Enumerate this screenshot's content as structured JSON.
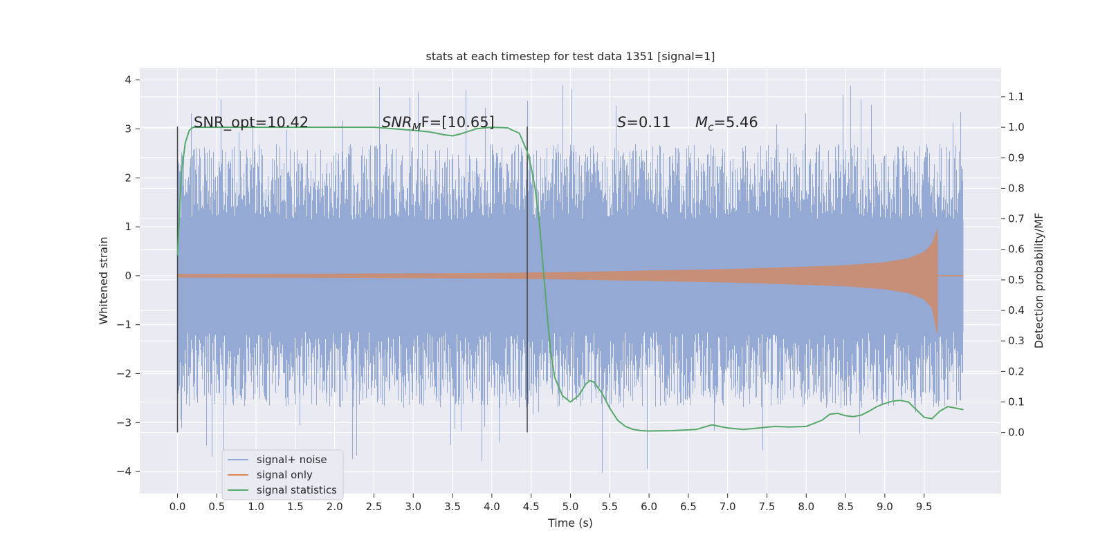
{
  "chart_data": {
    "type": "line",
    "title": "stats at each timestep for test data 1351 [signal=1]",
    "xlabel": "Time (s)",
    "ylabel": "Whitened strain",
    "y2label": "Detection probability/MF",
    "xlim": [
      -0.48,
      10.48
    ],
    "ylim": [
      -4.45,
      4.25
    ],
    "y2lim": [
      -0.2,
      1.195
    ],
    "xticks": [
      "0.0",
      "0.5",
      "1.0",
      "1.5",
      "2.0",
      "2.5",
      "3.0",
      "3.5",
      "4.0",
      "4.5",
      "5.0",
      "5.5",
      "6.0",
      "6.5",
      "7.0",
      "7.5",
      "8.0",
      "8.5",
      "9.0",
      "9.5"
    ],
    "yticks": [
      "−4",
      "−3",
      "−2",
      "−1",
      "0",
      "1",
      "2",
      "3",
      "4"
    ],
    "y2ticks": [
      "0.0",
      "0.1",
      "0.2",
      "0.3",
      "0.4",
      "0.5",
      "0.6",
      "0.7",
      "0.8",
      "0.9",
      "1.0",
      "1.1"
    ],
    "grid": true,
    "legend_position": "lower-left",
    "colors": {
      "background": "#eaeaf2",
      "grid": "#ffffff",
      "noise": "#94a9d3",
      "signal": "#dd8452",
      "stat": "#55a868",
      "vline": "#444444"
    },
    "annotations": {
      "snr_opt": "SNR_opt=10.42",
      "snr_mf_head": "SNR",
      "snr_mf_sub": "M",
      "snr_mf_tail": "F=[10.65]",
      "s_head": "S",
      "s_tail": "=0.11",
      "mc_head": "M",
      "mc_sub": "c",
      "mc_tail": "=5.46"
    },
    "vertical_lines_x": [
      0.0,
      4.45
    ],
    "series": [
      {
        "name": "signal+ noise",
        "kind": "noise",
        "x_range": [
          0.0,
          10.0
        ],
        "envelope": {
          "core": 1.15,
          "typical_peak": 2.7,
          "max_peak": 3.9,
          "min_peak": -4.05
        }
      },
      {
        "name": "signal only",
        "kind": "chirp",
        "x_range": [
          0.0,
          9.67
        ],
        "amplitude": {
          "x": [
            0.0,
            2.0,
            4.0,
            5.0,
            6.0,
            7.0,
            8.0,
            8.5,
            9.0,
            9.3,
            9.5,
            9.6,
            9.67
          ],
          "y": [
            0.03,
            0.035,
            0.05,
            0.07,
            0.1,
            0.13,
            0.18,
            0.21,
            0.27,
            0.35,
            0.48,
            0.65,
            0.95
          ]
        }
      },
      {
        "name": "signal statistics",
        "kind": "line",
        "axis": "right",
        "x": [
          0.0,
          0.05,
          0.1,
          0.15,
          0.2,
          0.3,
          0.5,
          1.0,
          2.0,
          2.5,
          3.0,
          3.2,
          3.4,
          3.5,
          3.6,
          3.8,
          4.0,
          4.2,
          4.35,
          4.45,
          4.5,
          4.55,
          4.6,
          4.65,
          4.7,
          4.75,
          4.8,
          4.9,
          5.0,
          5.1,
          5.2,
          5.25,
          5.3,
          5.4,
          5.5,
          5.6,
          5.7,
          5.8,
          5.9,
          6.0,
          6.3,
          6.6,
          6.8,
          7.0,
          7.2,
          7.4,
          7.6,
          7.8,
          8.0,
          8.1,
          8.2,
          8.3,
          8.4,
          8.5,
          8.6,
          8.7,
          8.8,
          8.9,
          9.0,
          9.1,
          9.2,
          9.3,
          9.4,
          9.5,
          9.6,
          9.7,
          9.8,
          9.9,
          10.0
        ],
        "y": [
          0.58,
          0.85,
          0.95,
          0.99,
          1.0,
          1.0,
          1.0,
          1.0,
          1.0,
          1.0,
          0.99,
          0.985,
          0.975,
          0.972,
          0.978,
          0.995,
          1.0,
          0.998,
          0.98,
          0.92,
          0.87,
          0.8,
          0.7,
          0.55,
          0.4,
          0.26,
          0.18,
          0.12,
          0.1,
          0.12,
          0.16,
          0.17,
          0.165,
          0.13,
          0.08,
          0.04,
          0.02,
          0.01,
          0.006,
          0.005,
          0.006,
          0.01,
          0.025,
          0.015,
          0.01,
          0.015,
          0.02,
          0.018,
          0.02,
          0.03,
          0.04,
          0.06,
          0.063,
          0.055,
          0.052,
          0.057,
          0.07,
          0.085,
          0.095,
          0.103,
          0.105,
          0.1,
          0.075,
          0.05,
          0.045,
          0.07,
          0.085,
          0.08,
          0.075
        ]
      }
    ]
  }
}
